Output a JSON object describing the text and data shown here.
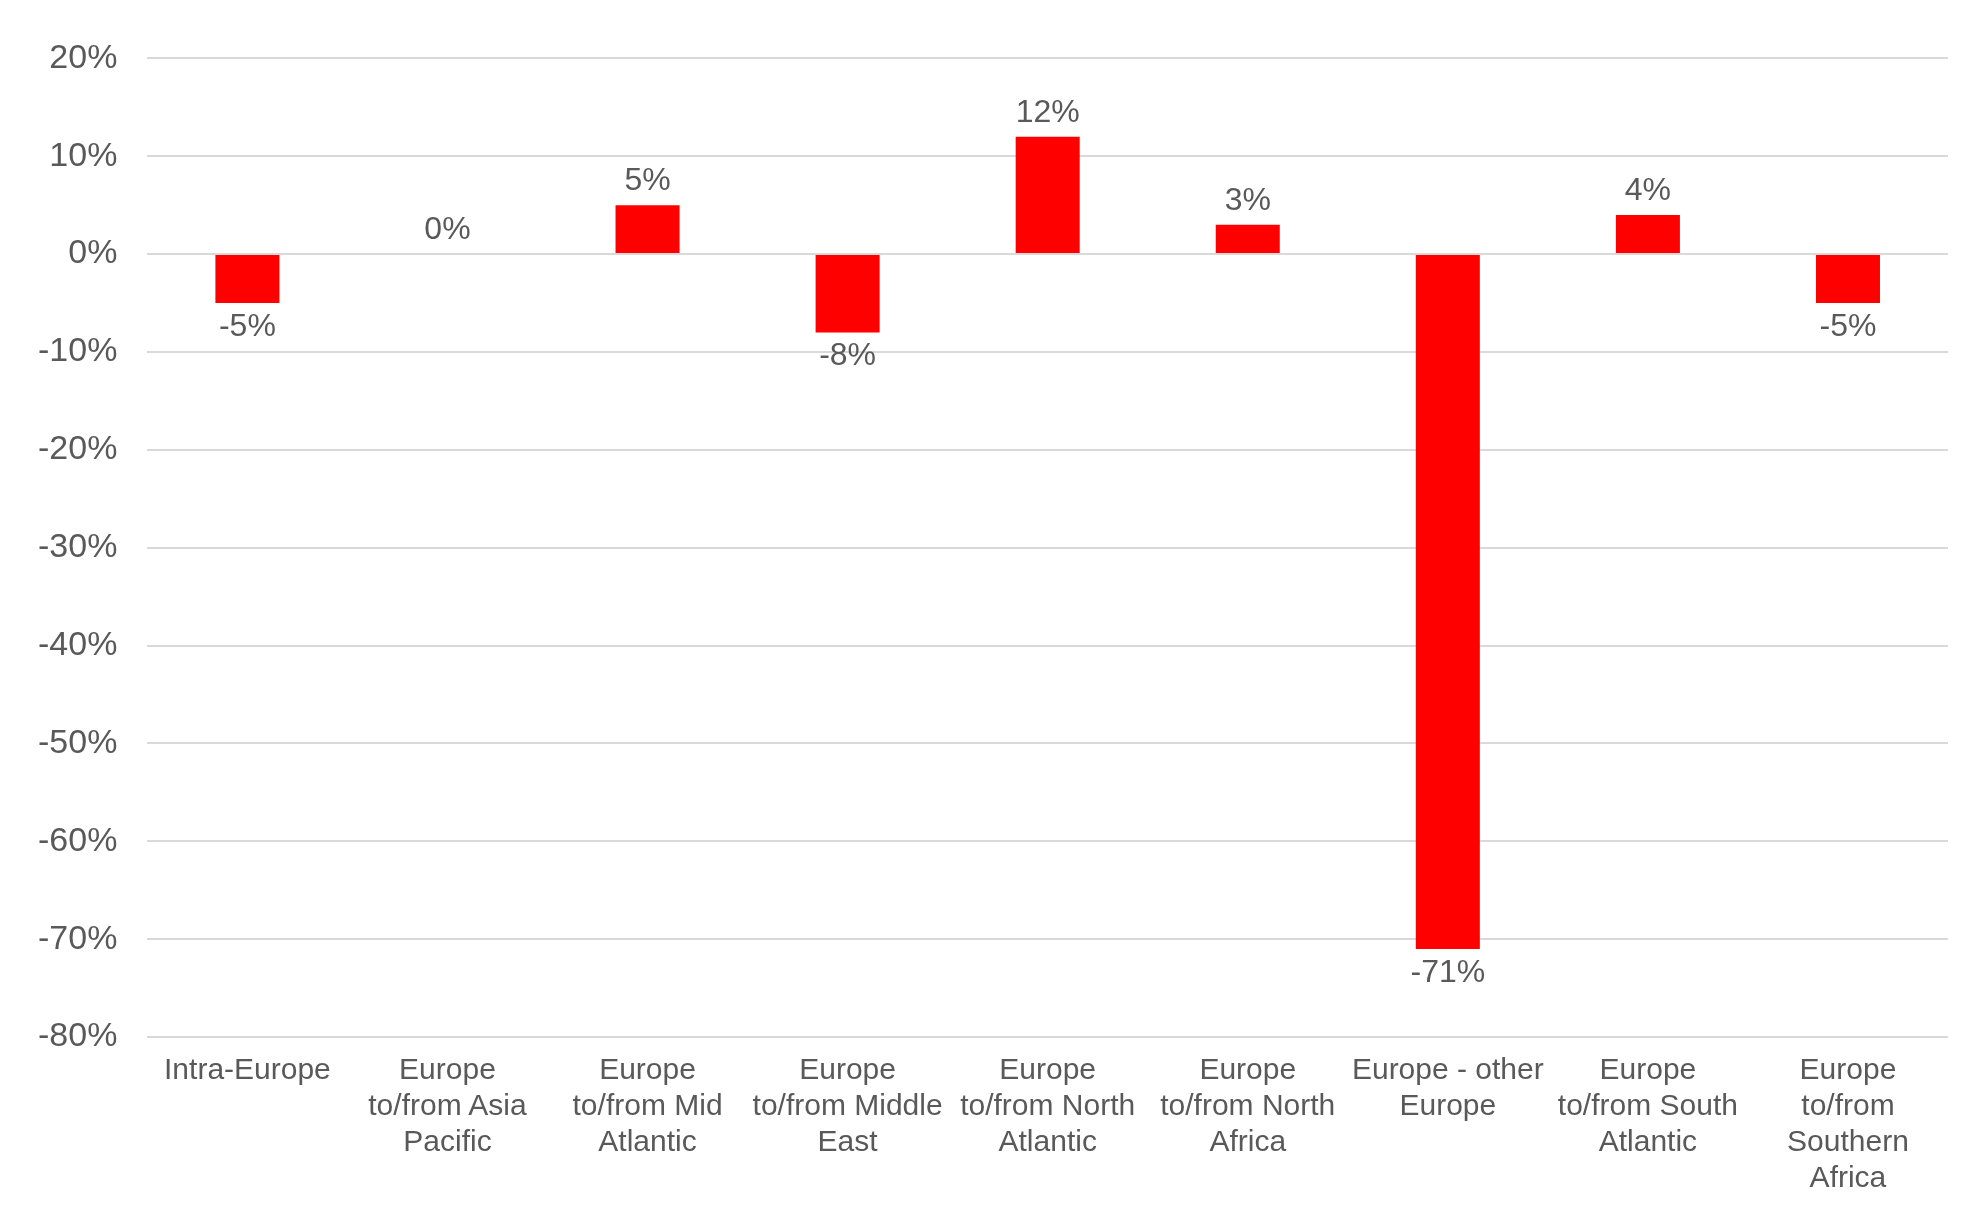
{
  "chart_data": {
    "type": "bar",
    "categories": [
      "Intra-Europe",
      "Europe to/from Asia Pacific",
      "Europe to/from Mid Atlantic",
      "Europe to/from Middle East",
      "Europe to/from North Atlantic",
      "Europe to/from North Africa",
      "Europe - other Europe",
      "Europe to/from South Atlantic",
      "Europe to/from Southern Africa"
    ],
    "values": [
      -5,
      0,
      5,
      -8,
      12,
      3,
      -71,
      4,
      -5
    ],
    "value_labels": [
      "-5%",
      "0%",
      "5%",
      "-8%",
      "12%",
      "3%",
      "-71%",
      "4%",
      "-5%"
    ],
    "color": "#ff0000",
    "ylim": [
      -80,
      20
    ],
    "yticks": [
      {
        "value": -80,
        "label": "-80%"
      },
      {
        "value": -70,
        "label": "-70%"
      },
      {
        "value": -60,
        "label": "-60%"
      },
      {
        "value": -50,
        "label": "-50%"
      },
      {
        "value": -40,
        "label": "-40%"
      },
      {
        "value": -30,
        "label": "-30%"
      },
      {
        "value": -20,
        "label": "-20%"
      },
      {
        "value": -10,
        "label": "-10%"
      },
      {
        "value": 0,
        "label": "0%"
      },
      {
        "value": 10,
        "label": "10%"
      },
      {
        "value": 20,
        "label": "20%"
      }
    ],
    "grid": "y",
    "legend": false
  }
}
